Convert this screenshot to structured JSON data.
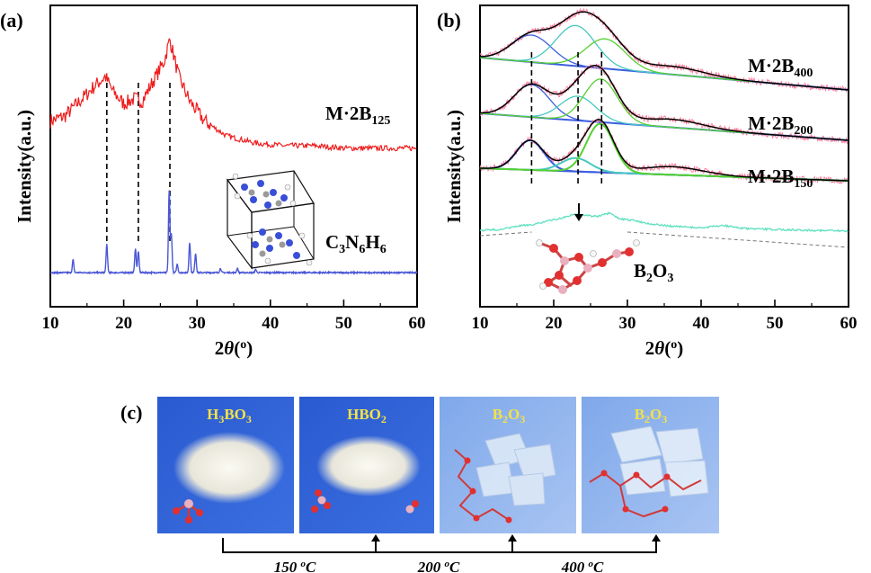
{
  "panels": {
    "a": {
      "label": "(a)"
    },
    "b": {
      "label": "(b)"
    },
    "c": {
      "label": "(c)"
    }
  },
  "colors": {
    "red": "#ee1c1c",
    "blue_ref": "#4a56d6",
    "pink": "#ff7a9a",
    "fit": "#000000",
    "fit_blue": "#3c5ee0",
    "fit_cyan": "#48c8c0",
    "fit_green": "#55d030",
    "b2o3": "#5fe0c0",
    "photo_bg": "#2f5fd0"
  },
  "chart_data": [
    {
      "type": "line",
      "panel": "(a)",
      "xlabel": "2θ(°)",
      "ylabel": "Intensity(a.u.)",
      "xlim": [
        10,
        60
      ],
      "xticks": [
        "10",
        "20",
        "30",
        "40",
        "50",
        "60"
      ],
      "series": [
        {
          "name": "M·2B125",
          "color": "red",
          "x": [
            10,
            12,
            14,
            16,
            17.5,
            18.5,
            20,
            21.5,
            22.5,
            24,
            25.5,
            26.3,
            27.5,
            29,
            31,
            34,
            38,
            42,
            46,
            50,
            55,
            60
          ],
          "y": [
            62,
            64,
            70,
            76,
            80,
            74,
            69,
            71,
            70,
            78,
            86,
            95,
            80,
            70,
            62,
            56,
            53,
            52,
            52,
            51,
            51,
            51
          ]
        },
        {
          "name": "C3N6H6",
          "color": "blue_ref",
          "peaks": [
            {
              "x": 13.1,
              "h": 6
            },
            {
              "x": 17.7,
              "h": 13
            },
            {
              "x": 21.6,
              "h": 11
            },
            {
              "x": 22.0,
              "h": 10
            },
            {
              "x": 26.2,
              "h": 38
            },
            {
              "x": 26.5,
              "h": 18
            },
            {
              "x": 27.3,
              "h": 4
            },
            {
              "x": 29.0,
              "h": 14
            },
            {
              "x": 29.8,
              "h": 9
            },
            {
              "x": 33.2,
              "h": 2
            },
            {
              "x": 35.5,
              "h": 2
            },
            {
              "x": 38.0,
              "h": 1.5
            }
          ]
        }
      ],
      "reference_lines_x": [
        17.7,
        22.0,
        26.3
      ]
    },
    {
      "type": "line",
      "panel": "(b)",
      "xlabel": "2θ(°)",
      "ylabel": "Intensity(a.u.)",
      "xlim": [
        10,
        60
      ],
      "xticks": [
        "10",
        "20",
        "30",
        "40",
        "50",
        "60"
      ],
      "series": [
        {
          "name": "M·2B400",
          "components": [
            {
              "c": 17,
              "w": 3.8,
              "a": 10
            },
            {
              "c": 23,
              "w": 3.8,
              "a": 15
            },
            {
              "c": 27,
              "w": 3.8,
              "a": 11
            }
          ]
        },
        {
          "name": "M·2B200",
          "components": [
            {
              "c": 17,
              "w": 3.4,
              "a": 12
            },
            {
              "c": 23.3,
              "w": 3.4,
              "a": 9
            },
            {
              "c": 26.4,
              "w": 3.2,
              "a": 16
            }
          ]
        },
        {
          "name": "M·2B150",
          "components": [
            {
              "c": 16.8,
              "w": 2.6,
              "a": 11
            },
            {
              "c": 23,
              "w": 2.8,
              "a": 5
            },
            {
              "c": 26.3,
              "w": 2.6,
              "a": 18
            }
          ]
        },
        {
          "name": "B2O3",
          "x": [
            10,
            13,
            15,
            17,
            19,
            21,
            23,
            24,
            26,
            27.5,
            29,
            31,
            33,
            36,
            40,
            43,
            46,
            50,
            55,
            60
          ],
          "y": [
            10,
            11,
            15,
            17,
            21,
            25,
            30,
            29,
            27,
            31,
            24,
            22,
            18,
            15,
            13,
            16,
            12,
            11,
            10,
            9
          ]
        }
      ],
      "reference_lines_x": [
        17,
        23.3,
        26.5
      ]
    }
  ],
  "panel_a": {
    "series_label_main": "M·2B",
    "series_label_sub": "125",
    "molecule_label": "C3N6H6"
  },
  "panel_b": {
    "labels": [
      {
        "main": "M·2B",
        "sub": "400"
      },
      {
        "main": "M·2B",
        "sub": "200"
      },
      {
        "main": "M·2B",
        "sub": "150"
      },
      {
        "main": "B2O3",
        "sub": ""
      }
    ]
  },
  "panel_c": {
    "photos": [
      {
        "label": "H3BO3"
      },
      {
        "label": "HBO2"
      },
      {
        "label": "B2O3"
      },
      {
        "label": "B2O3"
      }
    ],
    "temperatures": [
      "150 °C",
      "200 °C",
      "400 °C"
    ]
  }
}
